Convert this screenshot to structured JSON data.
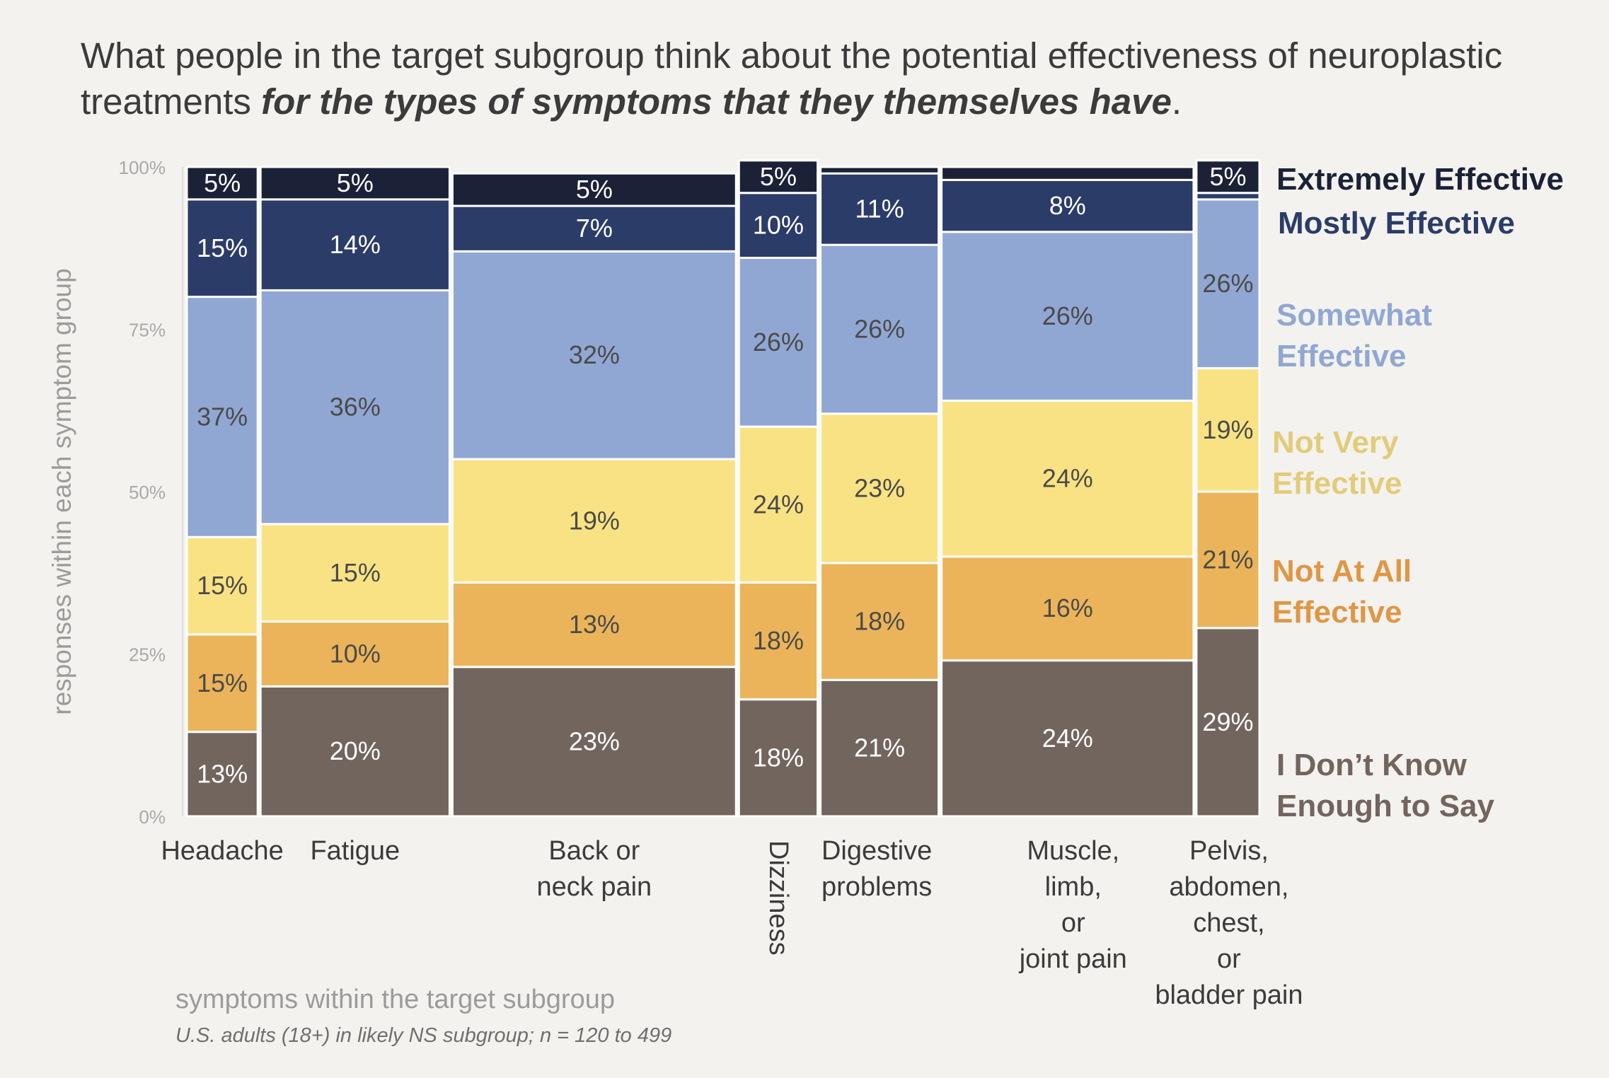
{
  "title": {
    "part1": "What people in the target subgroup think about the potential effectiveness of neuroplastic treatments ",
    "emphasis": "for the types of symptoms that they themselves have",
    "end": "."
  },
  "footer": {
    "xlabel": "symptoms within the target subgroup",
    "note": "U.S. adults (18+) in likely NS subgroup; n = 120 to 499"
  },
  "colors": {
    "extremely": "#1b2237",
    "mostly": "#2c3c68",
    "somewhat": "#91a7d3",
    "not_very": "#f9e284",
    "not_at_all": "#ebb45a",
    "dont_know": "#72655d",
    "background": "#f3f2ee"
  },
  "chart_data": {
    "type": "mosaic",
    "ylabel": "responses within each symptom group",
    "ylim": [
      0,
      100
    ],
    "y_ticks": [
      "0%",
      "25%",
      "50%",
      "75%",
      "100%"
    ],
    "categories": [
      "Headache",
      "Fatigue",
      "Back or neck pain",
      "Dizziness",
      "Digestive problems",
      "Muscle, limb, or joint pain",
      "Pelvis, abdomen, chest, or bladder pain"
    ],
    "category_label_lines": [
      [
        "Headache"
      ],
      [
        "Fatigue"
      ],
      [
        "Back or",
        "neck pain"
      ],
      [
        "Dizziness"
      ],
      [
        "Digestive",
        "problems"
      ],
      [
        "Muscle,",
        "limb,",
        "or",
        "joint pain"
      ],
      [
        "Pelvis,",
        "abdomen,",
        "chest,",
        "or",
        "bladder pain"
      ]
    ],
    "column_weights": [
      45,
      120,
      180,
      50,
      75,
      160,
      40
    ],
    "series": [
      {
        "name": "I Don’t Know Enough to Say",
        "key": "dont_know",
        "values": [
          13,
          20,
          23,
          18,
          21,
          24,
          29
        ],
        "labels": [
          "13%",
          "20%",
          "23%",
          "18%",
          "21%",
          "24%",
          "29%"
        ]
      },
      {
        "name": "Not At All Effective",
        "key": "not_at_all",
        "values": [
          15,
          10,
          13,
          18,
          18,
          16,
          21
        ],
        "labels": [
          "15%",
          "10%",
          "13%",
          "18%",
          "18%",
          "16%",
          "21%"
        ]
      },
      {
        "name": "Not Very Effective",
        "key": "not_very",
        "values": [
          15,
          15,
          19,
          24,
          23,
          24,
          19
        ],
        "labels": [
          "15%",
          "15%",
          "19%",
          "24%",
          "23%",
          "24%",
          "19%"
        ]
      },
      {
        "name": "Somewhat Effective",
        "key": "somewhat",
        "values": [
          37,
          36,
          32,
          26,
          26,
          26,
          26
        ],
        "labels": [
          "37%",
          "36%",
          "32%",
          "26%",
          "26%",
          "26%",
          "26%"
        ]
      },
      {
        "name": "Mostly Effective",
        "key": "mostly",
        "values": [
          15,
          14,
          7,
          10,
          11,
          8,
          1
        ],
        "labels": [
          "15%",
          "14%",
          "7%",
          "10%",
          "11%",
          "8%",
          ""
        ]
      },
      {
        "name": "Extremely Effective",
        "key": "extremely",
        "values": [
          5,
          5,
          5,
          5,
          1,
          2,
          5
        ],
        "labels": [
          "5%",
          "5%",
          "5%",
          "5%",
          "",
          "",
          "5%"
        ]
      }
    ],
    "legend_lines": {
      "extremely": [
        "Extremely Effective"
      ],
      "mostly": [
        "Mostly Effective"
      ],
      "somewhat": [
        "Somewhat",
        "Effective"
      ],
      "not_very": [
        "Not Very",
        "Effective"
      ],
      "not_at_all": [
        "Not At All",
        "Effective"
      ],
      "dont_know": [
        "I Don’t Know",
        "Enough to Say"
      ]
    },
    "legend_colors": {
      "extremely": "#1b2237",
      "mostly": "#2c3c68",
      "somewhat": "#91a7d3",
      "not_very": "#e2cc7a",
      "not_at_all": "#e09645",
      "dont_know": "#72655d"
    },
    "legend_placement": "right",
    "grid": false
  }
}
